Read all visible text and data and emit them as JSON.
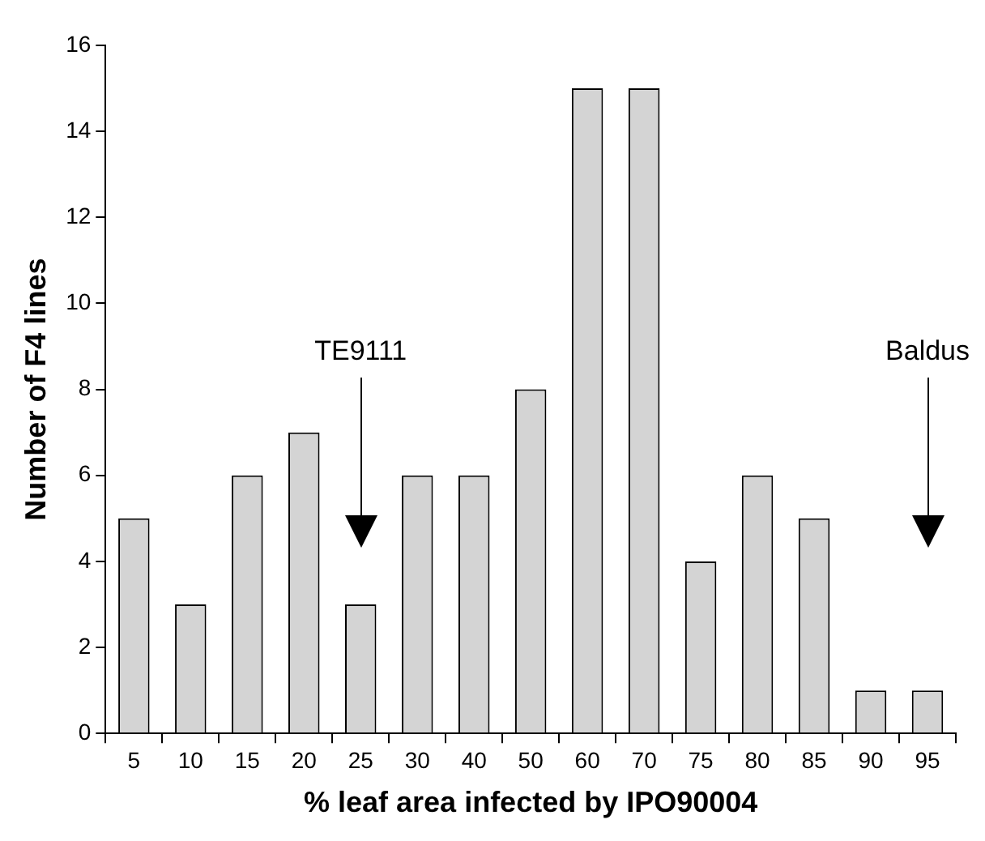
{
  "chart_data": {
    "type": "bar",
    "xlabel": "% leaf area infected by IPO90004",
    "ylabel": "Number of F4 lines",
    "categories": [
      "5",
      "10",
      "15",
      "20",
      "25",
      "30",
      "40",
      "50",
      "60",
      "70",
      "75",
      "80",
      "85",
      "90",
      "95"
    ],
    "values": [
      5,
      3,
      6,
      7,
      3,
      6,
      6,
      8,
      15,
      15,
      4,
      6,
      5,
      1,
      1
    ],
    "color": "#d4d4d4",
    "ylim": [
      0,
      16
    ],
    "yticks": [
      0,
      2,
      4,
      6,
      8,
      10,
      12,
      14,
      16
    ],
    "grid": false,
    "legend": false,
    "annotations": [
      "TE9111",
      "Baldus"
    ]
  }
}
